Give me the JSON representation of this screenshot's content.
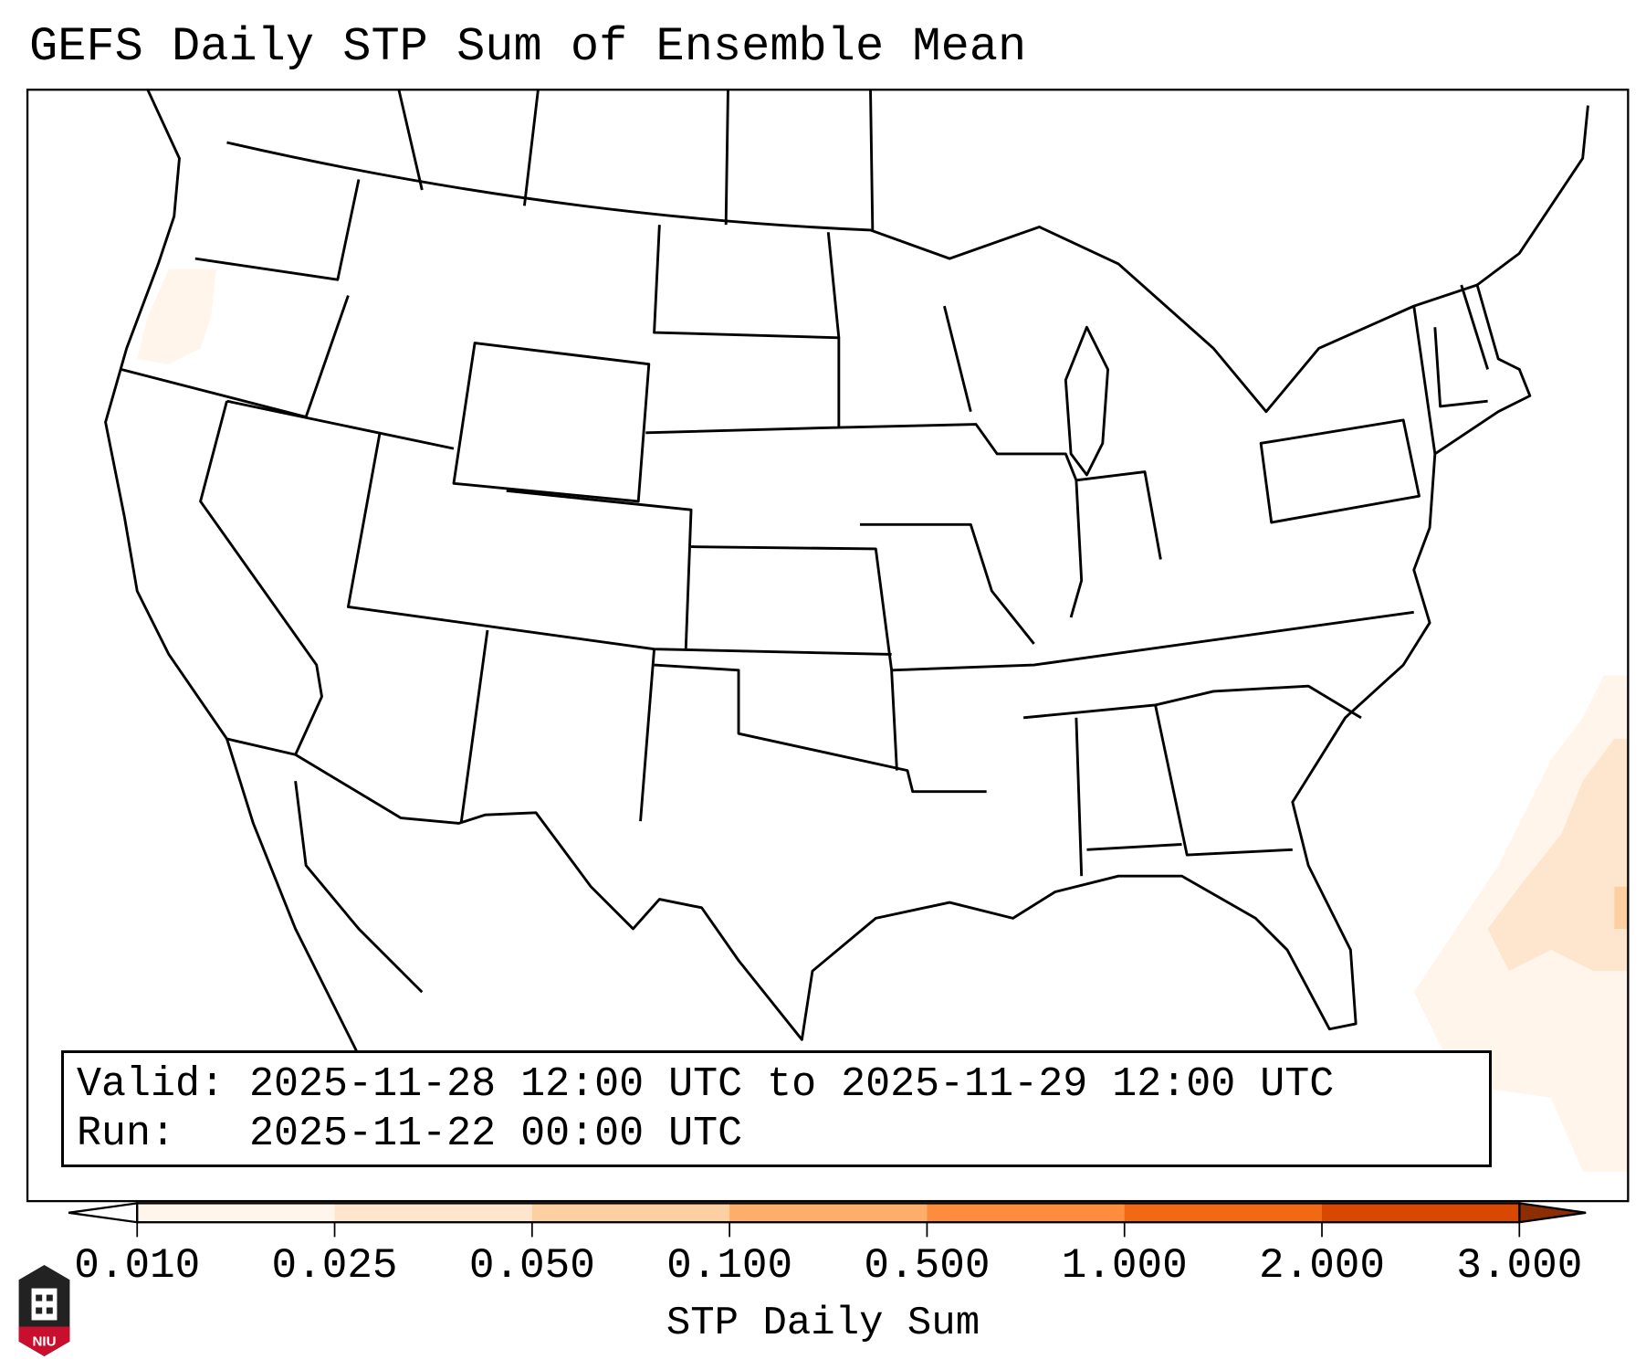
{
  "title": "GEFS Daily STP Sum of Ensemble Mean",
  "info_box": {
    "valid_label": "Valid:",
    "valid_value": "2025-11-28 12:00 UTC to 2025-11-29 12:00 UTC",
    "run_label": "Run:",
    "run_value": "2025-11-22 00:00 UTC"
  },
  "colorbar": {
    "label": "STP Daily Sum",
    "ticks": [
      "0.010",
      "0.025",
      "0.050",
      "0.100",
      "0.500",
      "1.000",
      "2.000",
      "3.000"
    ],
    "colors": [
      "#fff5eb",
      "#fee6ce",
      "#fdd0a2",
      "#fdae6b",
      "#fd8d3c",
      "#f16913",
      "#d94801"
    ],
    "under_color": "#ffffff",
    "over_color": "#8c2d04",
    "extend": "both"
  },
  "logo": {
    "text": "NIU"
  }
}
